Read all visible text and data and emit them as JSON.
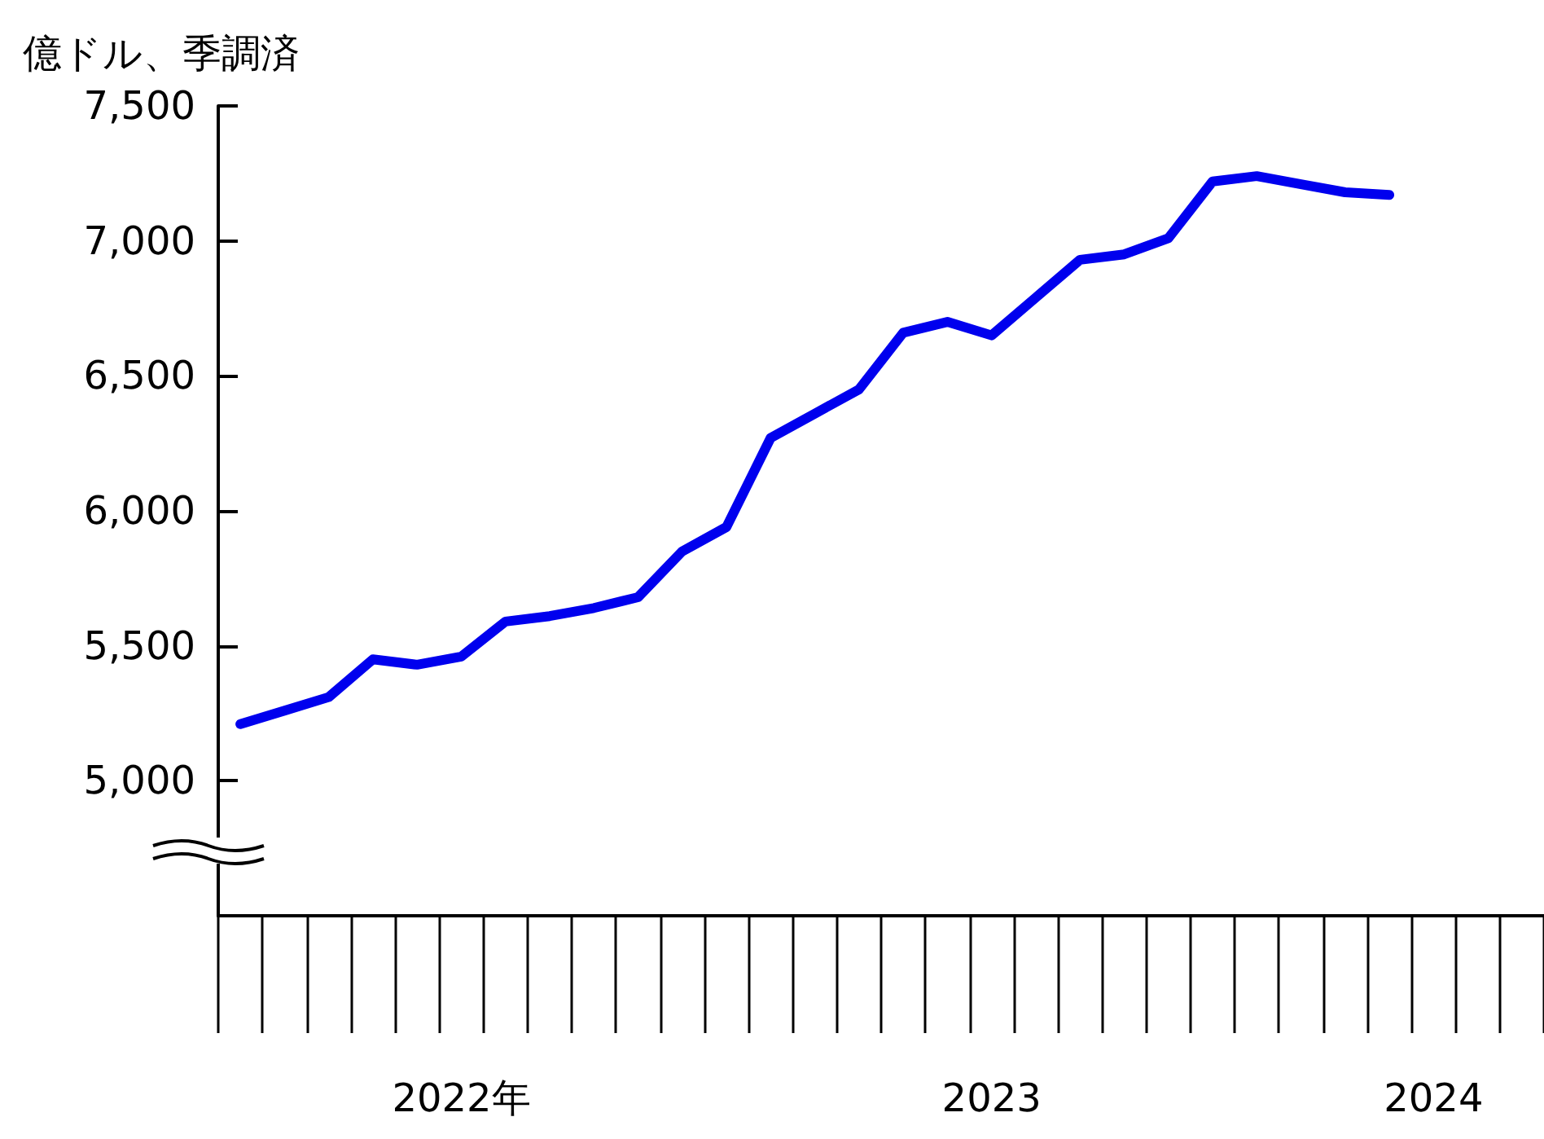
{
  "chart_data": {
    "type": "line",
    "ylabel": "億ドル、季調済",
    "categories": [
      null,
      null,
      null,
      null,
      null,
      "2022年",
      null,
      null,
      null,
      null,
      null,
      null,
      null,
      null,
      null,
      null,
      null,
      "2023",
      null,
      null,
      null,
      null,
      null,
      null,
      null,
      null,
      null,
      "2024",
      null,
      null
    ],
    "series": [
      {
        "color": "#0000ee",
        "values": [
          5210,
          5260,
          5310,
          5450,
          5430,
          5460,
          5590,
          5610,
          5640,
          5680,
          5850,
          5940,
          6270,
          6360,
          6450,
          6660,
          6700,
          6650,
          6790,
          6930,
          6950,
          7010,
          7220,
          7240,
          7210,
          7180,
          7170,
          null,
          null,
          null
        ]
      }
    ],
    "ylim": [
      4500,
      7500
    ],
    "yticks": [
      {
        "value": 5000,
        "label": "5,000"
      },
      {
        "value": 5500,
        "label": "5,500"
      },
      {
        "value": 6000,
        "label": "6,000"
      },
      {
        "value": 6500,
        "label": "6,500"
      },
      {
        "value": 7000,
        "label": "7,000"
      },
      {
        "value": 7500,
        "label": "7,500"
      }
    ],
    "grid": false,
    "marker": "none",
    "line_style": "solid"
  }
}
